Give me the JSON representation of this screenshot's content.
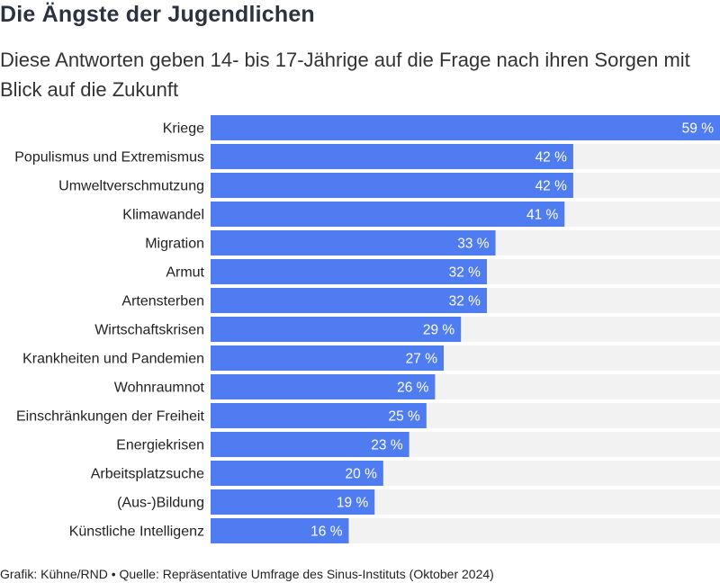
{
  "title": "Die Ängste der Jugendlichen",
  "subtitle": "Diese Antworten geben 14- bis 17-Jährige auf die Frage nach ihren Sorgen mit Blick auf die Zukunft",
  "footer": "Grafik: Kühne/RND • Quelle: Repräsentative Umfrage des Sinus-Instituts (Oktober 2024)",
  "colors": {
    "bar": "#4f7cf0",
    "track": "#f2f2f2"
  },
  "chart_data": {
    "type": "bar",
    "orientation": "horizontal",
    "categories": [
      "Kriege",
      "Populismus und Extremismus",
      "Umweltverschmutzung",
      "Klimawandel",
      "Migration",
      "Armut",
      "Artensterben",
      "Wirtschaftskrisen",
      "Krankheiten und Pandemien",
      "Wohnraumnot",
      "Einschränkungen der Freiheit",
      "Energiekrisen",
      "Arbeitsplatzsuche",
      "(Aus-)Bildung",
      "Künstliche Intelligenz"
    ],
    "values": [
      59,
      42,
      42,
      41,
      33,
      32,
      32,
      29,
      27,
      26,
      25,
      23,
      20,
      19,
      16
    ],
    "value_labels": [
      "59 %",
      "42 %",
      "42 %",
      "41 %",
      "33 %",
      "32 %",
      "32 %",
      "29 %",
      "27 %",
      "26 %",
      "25 %",
      "23 %",
      "20 %",
      "19 %",
      "16 %"
    ],
    "xlim": [
      0,
      59
    ],
    "grid": false,
    "legend": "none"
  }
}
